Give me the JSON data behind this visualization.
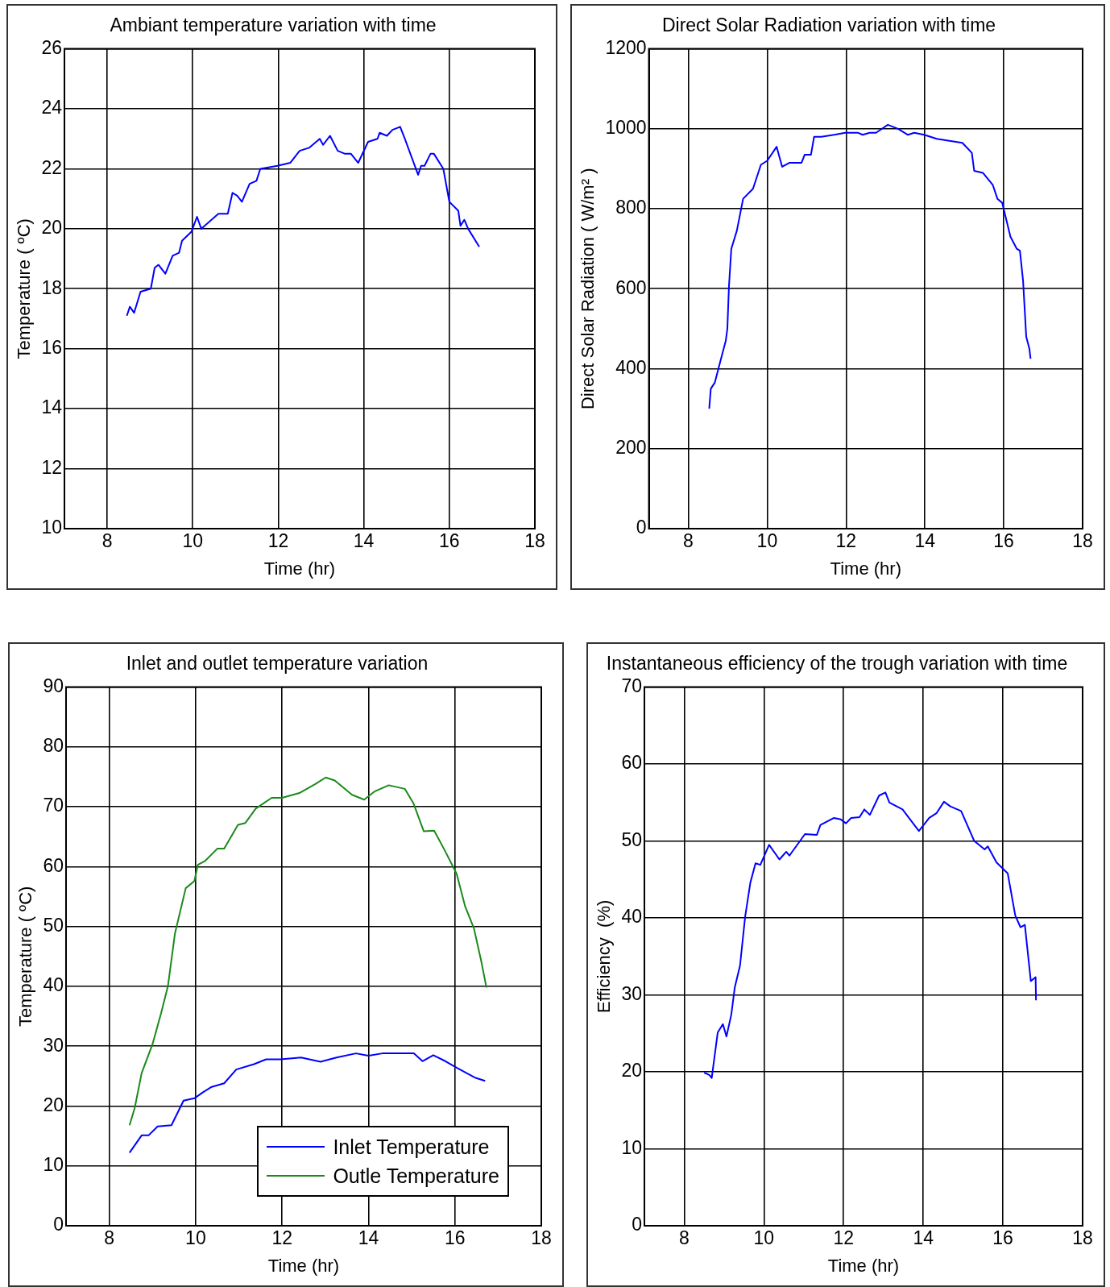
{
  "chart_data": [
    {
      "type": "line",
      "title": "Ambiant temperature variation with time",
      "xlabel": "Time (hr)",
      "ylabel": "Temperature ( ºC)",
      "xlim": [
        7,
        18
      ],
      "xticks": [
        8,
        10,
        12,
        14,
        16,
        18
      ],
      "ylim": [
        10,
        26
      ],
      "yticks": [
        10,
        12,
        14,
        16,
        18,
        20,
        22,
        24,
        26
      ],
      "grid": true,
      "legend": false,
      "series": [
        {
          "color": "#0000ff",
          "x": [
            8.46,
            8.53,
            8.63,
            8.78,
            9.02,
            9.11,
            9.2,
            9.36,
            9.53,
            9.68,
            9.75,
            9.97,
            10.1,
            10.2,
            10.6,
            10.82,
            10.93,
            11.04,
            11.15,
            11.33,
            11.49,
            11.58,
            11.98,
            12.28,
            12.5,
            12.72,
            12.97,
            13.05,
            13.21,
            13.39,
            13.56,
            13.7,
            13.87,
            14.1,
            14.32,
            14.37,
            14.54,
            14.67,
            14.85,
            14.96,
            15.27,
            15.34,
            15.42,
            15.56,
            15.64,
            15.86,
            16.0,
            16.21,
            16.26,
            16.35,
            16.44,
            16.7
          ],
          "values": [
            17.1,
            17.4,
            17.2,
            17.9,
            18.0,
            18.7,
            18.8,
            18.5,
            19.1,
            19.2,
            19.6,
            19.9,
            20.4,
            20.0,
            20.5,
            20.5,
            21.2,
            21.1,
            20.9,
            21.5,
            21.6,
            22.0,
            22.1,
            22.2,
            22.6,
            22.7,
            23.0,
            22.8,
            23.1,
            22.6,
            22.5,
            22.5,
            22.2,
            22.9,
            23.0,
            23.2,
            23.1,
            23.3,
            23.4,
            23.0,
            21.8,
            22.1,
            22.1,
            22.5,
            22.5,
            22.0,
            20.9,
            20.6,
            20.1,
            20.3,
            20.0,
            19.4
          ]
        }
      ]
    },
    {
      "type": "line",
      "title": "Direct Solar Radiation variation with time",
      "xlabel": "Time (hr)",
      "ylabel": "Direct Solar Radiation ( W/m² )",
      "xlim": [
        7,
        18
      ],
      "xticks": [
        8,
        10,
        12,
        14,
        16,
        18
      ],
      "ylim": [
        0,
        1200
      ],
      "yticks": [
        0,
        200,
        400,
        600,
        800,
        1000,
        1200
      ],
      "grid": true,
      "legend": false,
      "series": [
        {
          "color": "#0000ff",
          "x": [
            8.53,
            8.57,
            8.67,
            8.79,
            8.95,
            8.99,
            9.03,
            9.09,
            9.23,
            9.39,
            9.64,
            9.84,
            10.0,
            10.24,
            10.38,
            10.56,
            10.87,
            10.95,
            11.11,
            11.19,
            11.37,
            11.7,
            11.98,
            12.31,
            12.42,
            12.6,
            12.76,
            13.06,
            13.32,
            13.57,
            13.73,
            13.98,
            14.3,
            14.62,
            14.95,
            15.19,
            15.25,
            15.47,
            15.72,
            15.84,
            15.96,
            16.17,
            16.33,
            16.41,
            16.49,
            16.57,
            16.65,
            16.68
          ],
          "values": [
            300,
            350,
            365,
            410,
            470,
            500,
            605,
            700,
            745,
            825,
            850,
            910,
            920,
            955,
            905,
            915,
            915,
            935,
            935,
            980,
            980,
            985,
            990,
            990,
            985,
            990,
            990,
            1010,
            1000,
            985,
            990,
            985,
            975,
            970,
            965,
            940,
            895,
            890,
            860,
            825,
            815,
            730,
            700,
            695,
            620,
            480,
            450,
            425
          ]
        }
      ]
    },
    {
      "type": "line",
      "title": "Inlet and outlet temperature variation",
      "xlabel": "Time (hr)",
      "ylabel": "Temperature ( ºC)",
      "xlim": [
        7,
        18
      ],
      "xticks": [
        8,
        10,
        12,
        14,
        16,
        18
      ],
      "ylim": [
        0,
        90
      ],
      "yticks": [
        0,
        10,
        20,
        30,
        40,
        50,
        60,
        70,
        80,
        90
      ],
      "grid": true,
      "legend": "bottom right",
      "series": [
        {
          "name": "Inlet Temperature",
          "color": "#0000ff",
          "x": [
            8.47,
            8.75,
            8.91,
            9.12,
            9.44,
            9.72,
            9.97,
            10.17,
            10.37,
            10.66,
            10.94,
            11.35,
            11.63,
            11.96,
            12.44,
            12.89,
            13.26,
            13.71,
            14.0,
            14.32,
            15.05,
            15.25,
            15.5,
            15.78,
            16.04,
            16.48,
            16.7
          ],
          "values": [
            12.2,
            15.1,
            15.1,
            16.6,
            16.8,
            20.9,
            21.3,
            22.3,
            23.2,
            23.8,
            26.1,
            27.0,
            27.8,
            27.8,
            28.1,
            27.4,
            28.1,
            28.8,
            28.4,
            28.8,
            28.8,
            27.5,
            28.5,
            27.5,
            26.4,
            24.7,
            24.2
          ]
        },
        {
          "name": "Outle Temperature",
          "color": "#1a8a1a",
          "x": [
            8.47,
            8.59,
            8.75,
            9.0,
            9.2,
            9.36,
            9.52,
            9.77,
            9.97,
            10.05,
            10.21,
            10.5,
            10.66,
            10.98,
            11.15,
            11.39,
            11.76,
            12.0,
            12.4,
            12.77,
            13.01,
            13.22,
            13.62,
            13.9,
            14.15,
            14.47,
            14.84,
            15.04,
            15.28,
            15.52,
            15.76,
            16.04,
            16.24,
            16.44,
            16.61,
            16.73
          ],
          "values": [
            16.8,
            19.7,
            25.5,
            30.3,
            35.5,
            40.1,
            48.8,
            56.4,
            57.6,
            60.3,
            60.9,
            63.0,
            63.0,
            67.0,
            67.3,
            69.7,
            71.5,
            71.5,
            72.3,
            73.8,
            74.9,
            74.4,
            72.0,
            71.2,
            72.6,
            73.6,
            73.0,
            70.6,
            65.9,
            66.0,
            62.8,
            58.8,
            53.3,
            49.7,
            44.2,
            39.8
          ]
        }
      ]
    },
    {
      "type": "line",
      "title": "Instantaneous efficiency of the trough variation with time",
      "xlabel": "Time (hr)",
      "ylabel": "Efficiency  (%)",
      "xlim": [
        7,
        18
      ],
      "xticks": [
        8,
        10,
        12,
        14,
        16,
        18
      ],
      "ylim": [
        0,
        70
      ],
      "yticks": [
        0,
        10,
        20,
        30,
        40,
        50,
        60,
        70
      ],
      "grid": true,
      "legend": false,
      "series": [
        {
          "color": "#0000ff",
          "x": [
            8.5,
            8.63,
            8.69,
            8.84,
            8.97,
            9.06,
            9.18,
            9.27,
            9.4,
            9.53,
            9.66,
            9.79,
            9.91,
            10.13,
            10.39,
            10.56,
            10.64,
            11.03,
            11.33,
            11.42,
            11.76,
            11.93,
            12.06,
            12.19,
            12.4,
            12.52,
            12.66,
            12.89,
            13.05,
            13.15,
            13.48,
            13.89,
            14.15,
            14.33,
            14.52,
            14.68,
            14.95,
            15.28,
            15.54,
            15.62,
            15.84,
            16.12,
            16.31,
            16.44,
            16.55,
            16.7,
            16.82,
            16.83
          ],
          "values": [
            19.9,
            19.6,
            19.2,
            25.1,
            26.2,
            24.6,
            27.4,
            31.0,
            33.8,
            40.2,
            44.6,
            47.1,
            46.9,
            49.5,
            47.6,
            48.6,
            48.1,
            50.9,
            50.8,
            52.1,
            53.0,
            52.8,
            52.3,
            53.0,
            53.1,
            54.1,
            53.4,
            55.9,
            56.3,
            55.0,
            54.1,
            51.3,
            53.0,
            53.6,
            55.1,
            54.5,
            53.9,
            50.0,
            48.9,
            49.3,
            47.2,
            45.8,
            40.3,
            38.8,
            39.1,
            31.8,
            32.3,
            29.3
          ]
        }
      ]
    }
  ]
}
